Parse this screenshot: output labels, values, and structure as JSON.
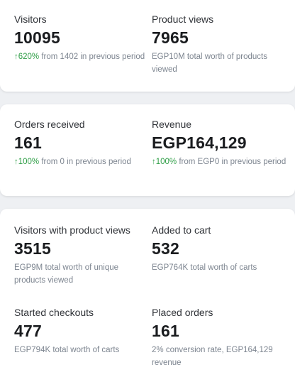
{
  "card1": {
    "visitors": {
      "label": "Visitors",
      "value": "10095",
      "change": "↑620%",
      "note": " from 1402 in previous period"
    },
    "product_views": {
      "label": "Product views",
      "value": "7965",
      "note": "EGP10M total worth of products viewed"
    }
  },
  "card2": {
    "orders": {
      "label": "Orders received",
      "value": "161",
      "change": "↑100%",
      "note": " from 0 in previous period"
    },
    "revenue": {
      "label": "Revenue",
      "value": "EGP164,129",
      "change": "↑100%",
      "note": " from EGP0 in previous period"
    }
  },
  "card3": {
    "visitors_product_views": {
      "label": "Visitors with product views",
      "value": "3515",
      "note": "EGP9M total worth of unique products viewed"
    },
    "added_to_cart": {
      "label": "Added to cart",
      "value": "532",
      "note": "EGP764K total worth of carts"
    },
    "started_checkouts": {
      "label": "Started checkouts",
      "value": "477",
      "note": "EGP794K total worth of carts"
    },
    "placed_orders": {
      "label": "Placed orders",
      "value": "161",
      "note": "2% conversion rate, EGP164,129 revenue"
    }
  },
  "colors": {
    "positive": "#2e9e46",
    "muted": "#7d8590"
  }
}
